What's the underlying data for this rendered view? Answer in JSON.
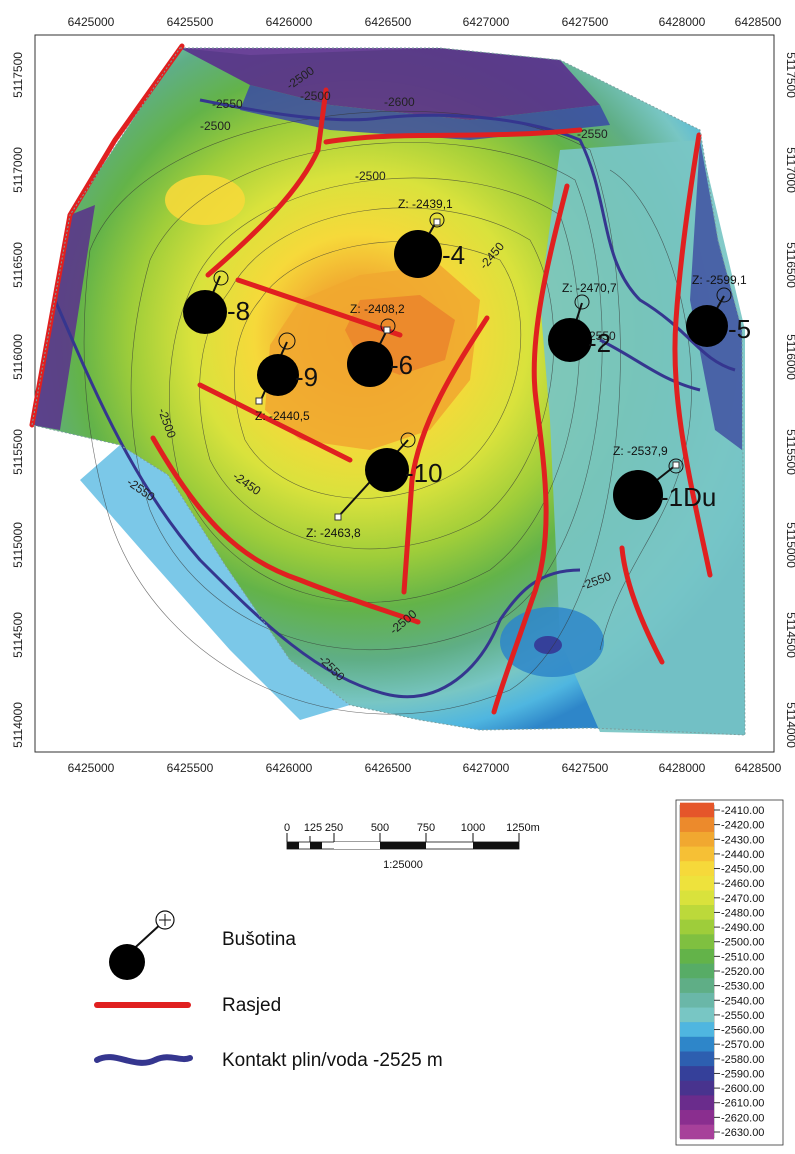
{
  "map": {
    "x_ticks": [
      "6425000",
      "6425500",
      "6426000",
      "6426500",
      "6427000",
      "6427500",
      "6428000",
      "6428500"
    ],
    "y_ticks": [
      "5117500",
      "5117000",
      "5116500",
      "5116000",
      "5115500",
      "5115000",
      "5114500",
      "5114000"
    ],
    "contour_labels": [
      "-2550",
      "-2500",
      "-2600",
      "-2500",
      "-2550",
      "-2500",
      "-2450",
      "-2450",
      "-2500",
      "-2550",
      "-2550",
      "-2500",
      "-2550",
      "-2550",
      "-2500"
    ],
    "wells": [
      {
        "name": "-4",
        "z": "Z: -2439,1"
      },
      {
        "name": "-8",
        "z": ""
      },
      {
        "name": "-6",
        "z": "Z: -2408,2"
      },
      {
        "name": "-9",
        "z": "Z: -2440,5"
      },
      {
        "name": "-10",
        "z": "Z: -2463,8"
      },
      {
        "name": "-2",
        "z": "Z: -2470,7"
      },
      {
        "name": "-5",
        "z": "Z: -2599,1"
      },
      {
        "name": "-1Du",
        "z": "Z: -2537,9"
      }
    ]
  },
  "scale_bar": {
    "ticks": [
      "0",
      "250",
      "500",
      "750",
      "1000",
      "1250m"
    ],
    "minor": "125",
    "ratio": "1:25000"
  },
  "colorbar": {
    "labels": [
      "-2410.00",
      "-2420.00",
      "-2430.00",
      "-2440.00",
      "-2450.00",
      "-2460.00",
      "-2470.00",
      "-2480.00",
      "-2490.00",
      "-2500.00",
      "-2510.00",
      "-2520.00",
      "-2530.00",
      "-2540.00",
      "-2550.00",
      "-2560.00",
      "-2570.00",
      "-2580.00",
      "-2590.00",
      "-2600.00",
      "-2610.00",
      "-2620.00",
      "-2630.00"
    ],
    "colors": [
      "#e5562a",
      "#ec8a2c",
      "#f1a830",
      "#f6c035",
      "#f6d93a",
      "#eee23c",
      "#d9e23c",
      "#bcd93a",
      "#9ecd3a",
      "#7fc040",
      "#63b349",
      "#57ac66",
      "#5fae86",
      "#6ab7a8",
      "#78c6c4",
      "#4fb6e0",
      "#2e86c9",
      "#2d5fb0",
      "#35409a",
      "#48338e",
      "#6a2c8c",
      "#8a2e8f",
      "#a7409a"
    ]
  },
  "legend": {
    "well_label": "Bušotina",
    "fault_label": "Rasjed",
    "contact_label": "Kontakt plin/voda -2525 m",
    "fault_color": "#e02020",
    "contact_color": "#35368f"
  }
}
